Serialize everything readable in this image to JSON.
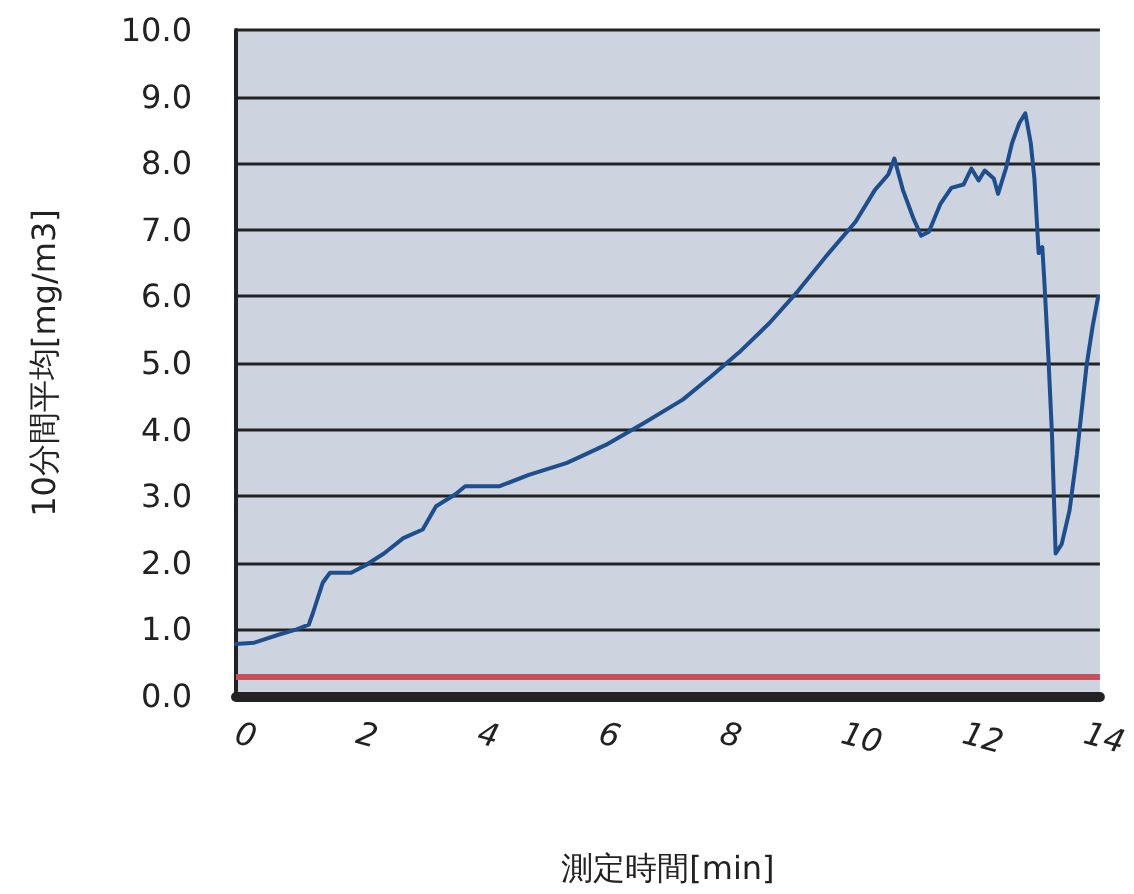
{
  "chart_data": {
    "type": "line",
    "xlabel": "測定時間[min]",
    "ylabel": "10分間平均[mg/m3]",
    "xlim": [
      0,
      14.25
    ],
    "xticks": [
      0,
      2,
      4,
      6,
      8,
      10,
      12,
      14
    ],
    "ylim": [
      0,
      10
    ],
    "yticks": [
      {
        "value": 0,
        "label": "0.0"
      },
      {
        "value": 1,
        "label": "1.0"
      },
      {
        "value": 2,
        "label": "2.0"
      },
      {
        "value": 3,
        "label": "3.0"
      },
      {
        "value": 4,
        "label": "4.0"
      },
      {
        "value": 5,
        "label": "5.0"
      },
      {
        "value": 6,
        "label": "6.0"
      },
      {
        "value": 7,
        "label": "7.0"
      },
      {
        "value": 8,
        "label": "8.0"
      },
      {
        "value": 9,
        "label": "9.0"
      },
      {
        "value": 10,
        "label": "10.0"
      }
    ],
    "grid": "y",
    "marker": "none",
    "line_style": "solid",
    "ref_lines": [
      {
        "axis": "y",
        "value": 0.3,
        "color": "#c8505a"
      }
    ],
    "series": [
      {
        "color": "#1f4e8c",
        "x": [
          0,
          0.3,
          0.7,
          1.0,
          1.2,
          1.27,
          1.43,
          1.55,
          1.9,
          2.13,
          2.44,
          2.76,
          3.08,
          3.3,
          3.62,
          3.78,
          4.35,
          4.83,
          5.46,
          6.1,
          6.73,
          7.37,
          7.84,
          8.3,
          8.8,
          9.27,
          9.75,
          10.22,
          10.54,
          10.76,
          10.86,
          11.0,
          11.17,
          11.3,
          11.43,
          11.62,
          11.8,
          12.0,
          12.13,
          12.25,
          12.35,
          12.5,
          12.57,
          12.7,
          12.8,
          12.92,
          13.02,
          13.11,
          13.17,
          13.24,
          13.3,
          13.33,
          13.4,
          13.46,
          13.5,
          13.52,
          13.62,
          13.75,
          13.87,
          14.03,
          14.13,
          14.22
        ],
        "values": [
          0.78,
          0.8,
          0.92,
          1.0,
          1.07,
          1.25,
          1.7,
          1.85,
          1.85,
          1.96,
          2.14,
          2.37,
          2.5,
          2.85,
          3.03,
          3.15,
          3.15,
          3.32,
          3.5,
          3.77,
          4.1,
          4.45,
          4.8,
          5.16,
          5.6,
          6.08,
          6.62,
          7.12,
          7.6,
          7.83,
          8.07,
          7.6,
          7.18,
          6.91,
          6.97,
          7.39,
          7.63,
          7.68,
          7.92,
          7.74,
          7.89,
          7.77,
          7.54,
          7.92,
          8.3,
          8.6,
          8.75,
          8.3,
          7.77,
          6.65,
          6.74,
          6.29,
          5.1,
          3.92,
          2.73,
          2.14,
          2.28,
          2.79,
          3.62,
          4.96,
          5.55,
          5.99
        ]
      }
    ]
  }
}
